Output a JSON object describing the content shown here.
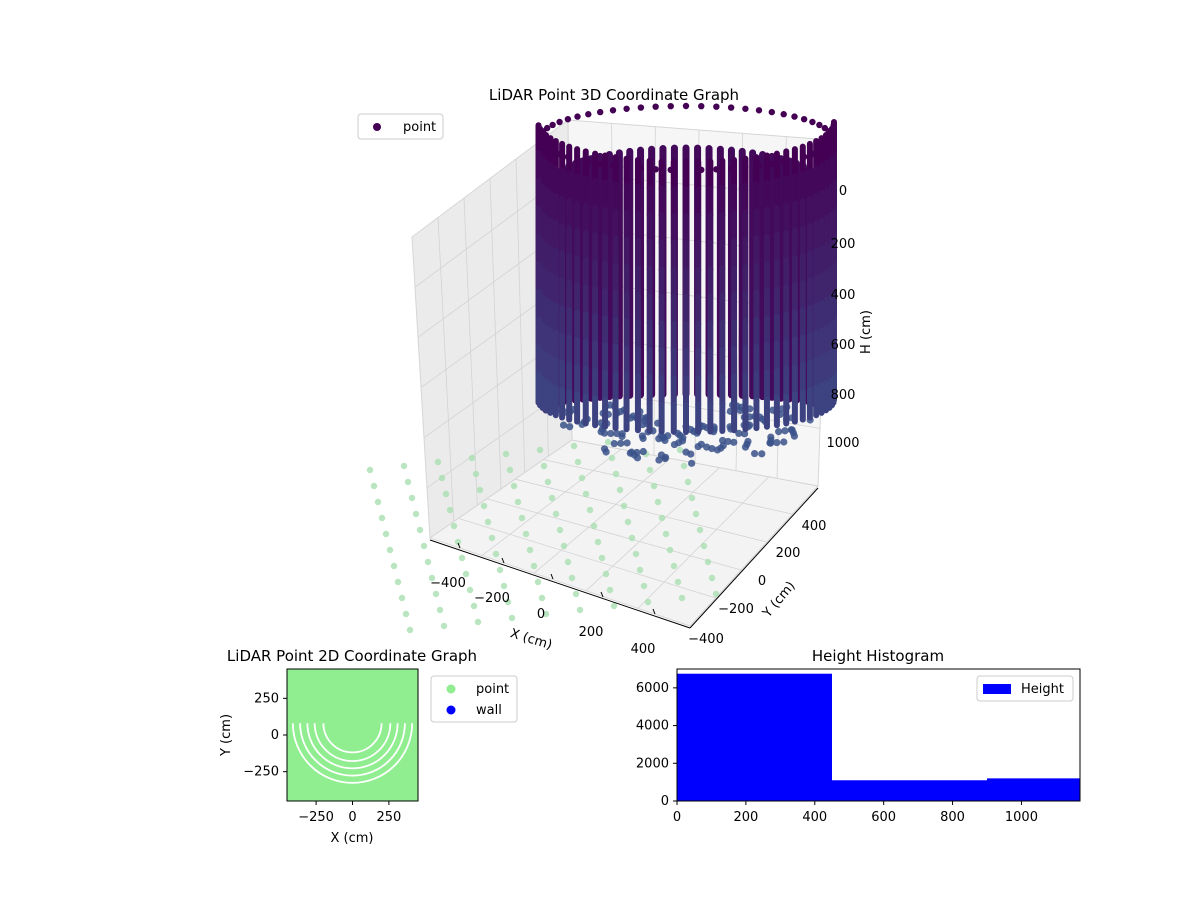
{
  "chart_data": [
    {
      "type": "scatter3d",
      "title": "LiDAR Point 3D Coordinate Graph",
      "xlabel": "X (cm)",
      "ylabel": "Y (cm)",
      "zlabel": "H (cm)",
      "x_ticks": [
        "−400",
        "−200",
        "0",
        "200",
        "400"
      ],
      "y_ticks": [
        "−400",
        "−200",
        "0",
        "200",
        "400"
      ],
      "z_ticks": [
        "0",
        "200",
        "400",
        "600",
        "800",
        "1000"
      ],
      "xlim": [
        -450,
        450
      ],
      "ylim": [
        -450,
        450
      ],
      "zlim": [
        0,
        1100
      ],
      "z_inverted": true,
      "legend": [
        "point"
      ],
      "legend_position": "top-left",
      "colors": {
        "top": "#440154",
        "bottom": "#3b528b",
        "floor": "#a8dfb1",
        "legend_marker": "#440154"
      }
    },
    {
      "type": "scatter",
      "title": "LiDAR Point 2D Coordinate Graph",
      "xlabel": "X (cm)",
      "ylabel": "Y (cm)",
      "x_ticks": [
        "−250",
        "0",
        "250"
      ],
      "y_ticks": [
        "250",
        "0",
        "−250"
      ],
      "xlim": [
        -450,
        450
      ],
      "ylim": [
        -450,
        450
      ],
      "legend": [
        {
          "label": "point",
          "color": "#90ee90"
        },
        {
          "label": "wall",
          "color": "#0000ff"
        }
      ],
      "legend_position": "outside-right",
      "arc_radii": [
        200,
        260,
        310,
        360,
        410
      ]
    },
    {
      "type": "bar",
      "title": "Height Histogram",
      "bin_edges": [
        0,
        450,
        900,
        1170
      ],
      "values": [
        6750,
        1100,
        1200
      ],
      "xlim": [
        0,
        1170
      ],
      "ylim": [
        0,
        7000
      ],
      "x_ticks": [
        "0",
        "200",
        "400",
        "600",
        "800",
        "1000"
      ],
      "y_ticks": [
        "0",
        "2000",
        "4000",
        "6000"
      ],
      "legend": [
        "Height"
      ],
      "legend_position": "top-right",
      "color": "#0000ff"
    }
  ]
}
